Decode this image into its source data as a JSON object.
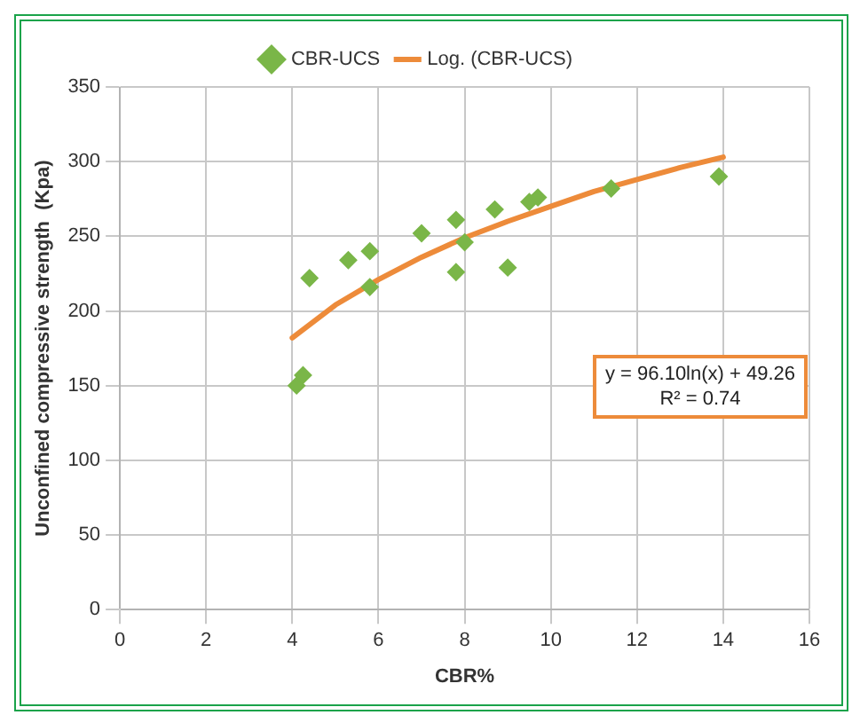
{
  "chart_data": {
    "type": "scatter",
    "xlabel": "CBR%",
    "ylabel": "Unconfined compressive strength  (Kpa)",
    "xlim": [
      0,
      16
    ],
    "xticks": [
      0,
      2,
      4,
      6,
      8,
      10,
      12,
      14,
      16
    ],
    "ylim": [
      0,
      350
    ],
    "yticks": [
      0,
      50,
      100,
      150,
      200,
      250,
      300,
      350
    ],
    "grid": true,
    "legend": "top",
    "marker": "diamond",
    "series": [
      {
        "name": "CBR-UCS",
        "color": "#7ab648",
        "x": [
          4.1,
          4.25,
          4.4,
          5.3,
          5.8,
          5.8,
          7.0,
          7.8,
          7.8,
          8.0,
          8.7,
          9.0,
          9.5,
          9.7,
          11.4,
          13.9
        ],
        "values": [
          150,
          157,
          222,
          234,
          240,
          216,
          252,
          261,
          226,
          246,
          268,
          229,
          273,
          276,
          282,
          290
        ]
      },
      {
        "name": "Log. (CBR-UCS)",
        "type": "line",
        "marker": "none",
        "color": "#ed8b3a",
        "x": [
          4,
          5,
          6,
          7,
          8,
          9,
          10,
          11,
          12,
          13,
          14
        ],
        "values": [
          182,
          204,
          221,
          236,
          249,
          260,
          270,
          280,
          288,
          296,
          303
        ]
      }
    ],
    "annotations": [
      "y = 96.10ln(x) + 49.26",
      "R² = 0.74"
    ]
  }
}
